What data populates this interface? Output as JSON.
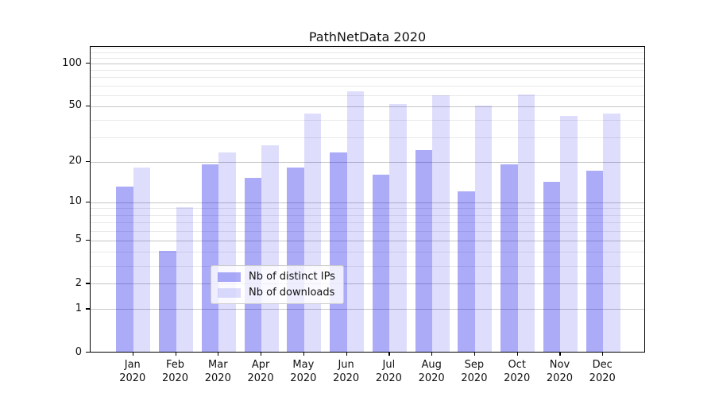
{
  "title": "PathNetData 2020",
  "colors": {
    "bar_ips": "rgba(10,10,235,0.34)",
    "bar_downloads": "rgba(10,10,235,0.135)",
    "bar_ips_hex_on_white": "#a9a9f5",
    "bar_downloads_hex_on_white": "#dcdcf8",
    "grid_major": "#c6c6c6",
    "grid_minor": "#e9e9e9",
    "axis": "#000000",
    "legend_border": "#cccccc"
  },
  "chart_data": {
    "type": "bar",
    "title": "PathNetData 2020",
    "categories": [
      {
        "month": "Jan",
        "year": "2020"
      },
      {
        "month": "Feb",
        "year": "2020"
      },
      {
        "month": "Mar",
        "year": "2020"
      },
      {
        "month": "Apr",
        "year": "2020"
      },
      {
        "month": "May",
        "year": "2020"
      },
      {
        "month": "Jun",
        "year": "2020"
      },
      {
        "month": "Jul",
        "year": "2020"
      },
      {
        "month": "Aug",
        "year": "2020"
      },
      {
        "month": "Sep",
        "year": "2020"
      },
      {
        "month": "Oct",
        "year": "2020"
      },
      {
        "month": "Nov",
        "year": "2020"
      },
      {
        "month": "Dec",
        "year": "2020"
      }
    ],
    "series": [
      {
        "key": "ips",
        "name": "Nb of distinct IPs",
        "values": [
          13,
          4,
          19,
          15,
          18,
          23,
          16,
          24,
          12,
          19,
          14,
          17
        ]
      },
      {
        "key": "downloads",
        "name": "Nb of downloads",
        "values": [
          18,
          9,
          23,
          26,
          44,
          63,
          51,
          59,
          50,
          60,
          42,
          44
        ]
      }
    ],
    "xlabel": "",
    "ylabel": "",
    "yscale": "log1p",
    "y_ticks": [
      0,
      1,
      2,
      5,
      10,
      20,
      50,
      100
    ],
    "y_minor_ticks": [
      3,
      4,
      6,
      7,
      8,
      9,
      30,
      40,
      60,
      70,
      80,
      90,
      110,
      120,
      130
    ],
    "ylim": [
      0,
      131
    ],
    "grid": "both",
    "legend_position": "lower center"
  }
}
